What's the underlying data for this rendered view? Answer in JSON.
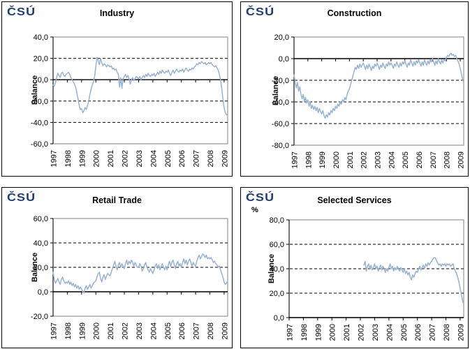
{
  "colors": {
    "line": "#95B3D7",
    "logo": "#1E3C82",
    "plot_border": "#969696",
    "gridline": "#000000",
    "axis": "#000000",
    "panel_border": "#000000",
    "text": "#000000"
  },
  "logo": {
    "text": "ČSÚ"
  },
  "chart_data": [
    {
      "type": "line",
      "title": "Industry",
      "ylabel": "Balance",
      "unit_label": "",
      "ylim": [
        -60,
        40
      ],
      "ytick_values": [
        40,
        20,
        0,
        -20,
        -40,
        -60
      ],
      "ytick_labels": [
        "40,0",
        "20,0",
        "0,0",
        "-20,0",
        "-40,0",
        "-60,0"
      ],
      "x_labels": [
        "1997",
        "1998",
        "1999",
        "2000",
        "2001",
        "2002",
        "2003",
        "2004",
        "2005",
        "2006",
        "2007",
        "2008",
        "2009"
      ],
      "x_frequency": "monthly",
      "months_total": 148,
      "start_index": 0,
      "values": [
        -5,
        -6,
        -3,
        2,
        6,
        4,
        2,
        6,
        7,
        4,
        3,
        5,
        6,
        7,
        5,
        2,
        0,
        -2,
        -4,
        -7,
        -12,
        -18,
        -24,
        -28,
        -27,
        -31,
        -29,
        -26,
        -28,
        -24,
        -20,
        -14,
        -9,
        -5,
        -2,
        3,
        12,
        21,
        18,
        14,
        20,
        16,
        13,
        15,
        14,
        12,
        14,
        13,
        12,
        13,
        10,
        11,
        9,
        10,
        7,
        5,
        -7,
        2,
        -8,
        1,
        3,
        5,
        2,
        4,
        1,
        -4,
        0,
        2,
        -1,
        1,
        3,
        2,
        1,
        3,
        0,
        2,
        4,
        2,
        5,
        3,
        6,
        4,
        3,
        5,
        4,
        6,
        3,
        5,
        7,
        5,
        8,
        6,
        9,
        7,
        6,
        8,
        7,
        9,
        6,
        4,
        7,
        9,
        6,
        8,
        10,
        8,
        7,
        9,
        8,
        10,
        7,
        9,
        11,
        9,
        8,
        10,
        9,
        11,
        10,
        12,
        13,
        15,
        14,
        16,
        15,
        17,
        16,
        15,
        16,
        14,
        15,
        16,
        15,
        16,
        14,
        13,
        12,
        13,
        11,
        9,
        5,
        0,
        -8,
        -18,
        -26,
        -31,
        -33,
        -32
      ]
    },
    {
      "type": "line",
      "title": "Construction",
      "ylabel": "Balance",
      "unit_label": "",
      "ylim": [
        -80,
        20
      ],
      "ytick_values": [
        20,
        0,
        -20,
        -40,
        -60,
        -80
      ],
      "ytick_labels": [
        "20,0",
        "0,0",
        "-20,0",
        "-40,0",
        "-60,0",
        "-80,0"
      ],
      "x_labels": [
        "1997",
        "1998",
        "1999",
        "2000",
        "2001",
        "2002",
        "2003",
        "2004",
        "2005",
        "2006",
        "2007",
        "2008",
        "2009"
      ],
      "x_frequency": "monthly",
      "months_total": 148,
      "start_index": 0,
      "values": [
        -15,
        -22,
        -27,
        -22,
        -30,
        -26,
        -33,
        -37,
        -33,
        -40,
        -36,
        -41,
        -38,
        -44,
        -40,
        -46,
        -43,
        -47,
        -44,
        -48,
        -45,
        -50,
        -46,
        -49,
        -51,
        -48,
        -53,
        -55,
        -52,
        -54,
        -50,
        -52,
        -48,
        -50,
        -46,
        -48,
        -44,
        -46,
        -42,
        -44,
        -40,
        -42,
        -38,
        -40,
        -36,
        -38,
        -33,
        -30,
        -28,
        -24,
        -20,
        -16,
        -12,
        -8,
        -10,
        -6,
        -9,
        -5,
        -8,
        -6,
        -4,
        -7,
        -10,
        -6,
        -9,
        -5,
        -8,
        -11,
        -7,
        -9,
        -5,
        -7,
        -4,
        -7,
        -10,
        -6,
        -8,
        -4,
        -7,
        -9,
        -5,
        -7,
        -3,
        -6,
        -4,
        -6,
        -9,
        -5,
        -7,
        -3,
        -6,
        -8,
        -4,
        -7,
        -3,
        -5,
        -2,
        -5,
        -8,
        -4,
        -6,
        -1,
        -4,
        -7,
        -3,
        -6,
        -2,
        -4,
        -1,
        -4,
        -7,
        -3,
        -6,
        -1,
        -4,
        -6,
        -2,
        -5,
        -1,
        -3,
        0,
        -3,
        -6,
        -2,
        -5,
        0,
        -3,
        -5,
        -1,
        -4,
        -1,
        -2,
        1,
        3,
        2,
        4,
        5,
        3,
        4,
        2,
        3,
        0,
        -2,
        -5,
        -9,
        -14,
        -19,
        -22
      ]
    },
    {
      "type": "line",
      "title": "Retail Trade",
      "ylabel": "Balance",
      "unit_label": "",
      "ylim": [
        -20,
        60
      ],
      "ytick_values": [
        60,
        40,
        20,
        0,
        -20
      ],
      "ytick_labels": [
        "60,0",
        "40,0",
        "20,0",
        "0,0",
        "-20,0"
      ],
      "x_labels": [
        "1997",
        "1998",
        "1999",
        "2000",
        "2001",
        "2002",
        "2003",
        "2004",
        "2005",
        "2006",
        "2007",
        "2008",
        "2009"
      ],
      "x_frequency": "monthly",
      "months_total": 148,
      "start_index": 0,
      "values": [
        16,
        10,
        7,
        9,
        11,
        8,
        6,
        10,
        12,
        9,
        7,
        8,
        7,
        9,
        6,
        8,
        5,
        7,
        4,
        6,
        3,
        5,
        2,
        4,
        2,
        0,
        -1,
        3,
        5,
        2,
        4,
        6,
        3,
        5,
        7,
        8,
        9,
        12,
        15,
        16,
        11,
        8,
        12,
        14,
        10,
        13,
        15,
        14,
        13,
        16,
        19,
        22,
        25,
        21,
        18,
        22,
        24,
        20,
        23,
        21,
        19,
        23,
        26,
        22,
        25,
        23,
        26,
        24,
        21,
        24,
        22,
        20,
        20,
        23,
        21,
        17,
        19,
        22,
        24,
        20,
        18,
        16,
        19,
        17,
        15,
        18,
        21,
        23,
        19,
        22,
        18,
        21,
        23,
        20,
        18,
        21,
        18,
        22,
        25,
        21,
        24,
        26,
        22,
        19,
        23,
        25,
        21,
        23,
        20,
        24,
        27,
        23,
        26,
        22,
        25,
        27,
        24,
        21,
        24,
        22,
        21,
        25,
        28,
        30,
        27,
        29,
        31,
        30,
        28,
        30,
        27,
        28,
        27,
        28,
        26,
        24,
        25,
        23,
        22,
        20,
        21,
        18,
        15,
        12,
        8,
        6,
        7,
        9
      ]
    },
    {
      "type": "line",
      "title": "Selected Services",
      "ylabel": "Balance",
      "unit_label": "%",
      "ylim": [
        0,
        80
      ],
      "ytick_values": [
        80,
        60,
        40,
        20,
        0
      ],
      "ytick_labels": [
        "80,0",
        "60,0",
        "40,0",
        "20,0",
        "0,0"
      ],
      "x_labels": [
        "1997",
        "1998",
        "1999",
        "2000",
        "2001",
        "2002",
        "2003",
        "2004",
        "2005",
        "2006",
        "2007",
        "2008",
        "2009"
      ],
      "x_frequency": "monthly",
      "months_total": 148,
      "start_index": 63,
      "values": [
        43,
        46,
        38,
        42,
        44,
        40,
        43,
        39,
        41,
        44,
        40,
        42,
        38,
        41,
        43,
        39,
        42,
        40,
        37,
        40,
        38,
        41,
        44,
        40,
        42,
        38,
        41,
        39,
        42,
        40,
        38,
        41,
        39,
        37,
        40,
        36,
        38,
        35,
        37,
        33,
        31,
        35,
        33,
        36,
        38,
        37,
        40,
        42,
        39,
        41,
        43,
        40,
        44,
        42,
        45,
        43,
        45,
        46,
        48,
        49,
        49,
        47,
        45,
        43,
        44,
        42,
        44,
        43,
        44,
        42,
        44,
        43,
        44,
        42,
        43,
        44,
        40,
        38,
        36,
        33,
        29,
        24,
        19,
        14,
        11
      ]
    }
  ]
}
